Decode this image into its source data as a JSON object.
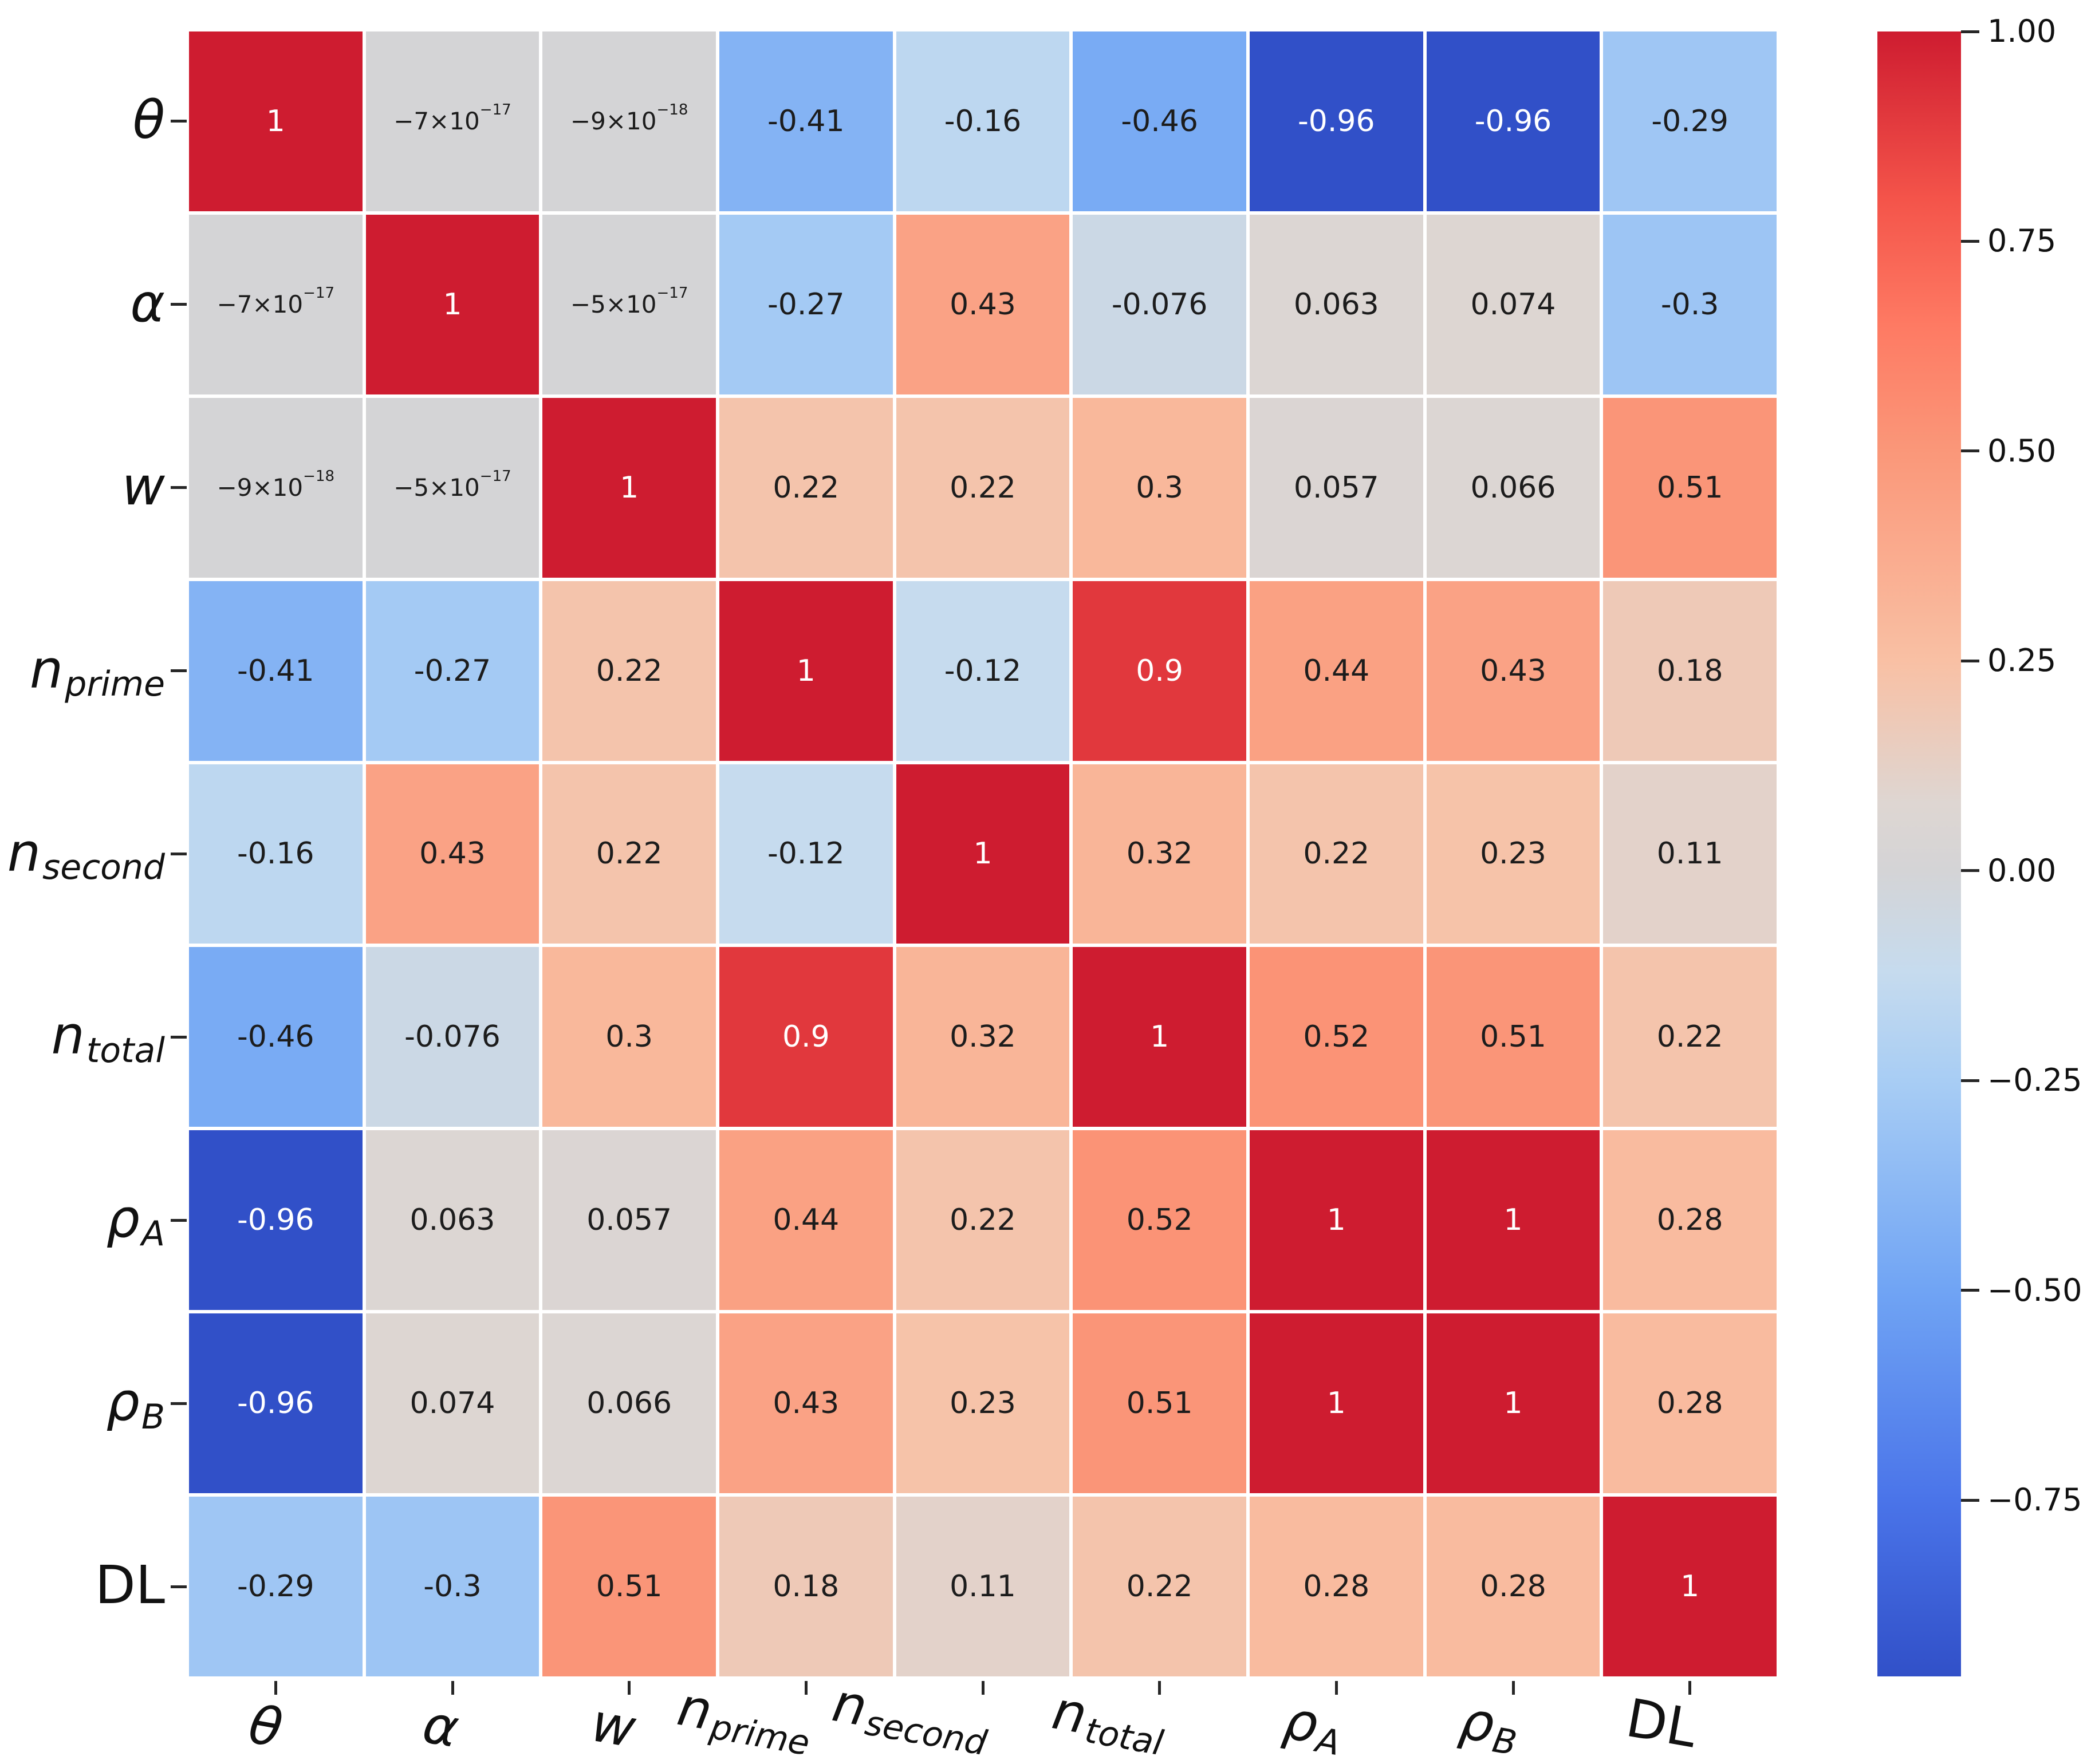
{
  "chart_data": {
    "type": "heatmap",
    "title": "",
    "subtitle": "",
    "legend_position": "right-colorbar",
    "grid": false,
    "variables": [
      {
        "base": "θ",
        "sub": "",
        "italic": true
      },
      {
        "base": "α",
        "sub": "",
        "italic": true
      },
      {
        "base": "w",
        "sub": "",
        "italic": true
      },
      {
        "base": "n",
        "sub": "prime",
        "italic": true
      },
      {
        "base": "n",
        "sub": "second",
        "italic": true
      },
      {
        "base": "n",
        "sub": "total",
        "italic": true
      },
      {
        "base": "ρ",
        "sub": "A",
        "italic": true
      },
      {
        "base": "ρ",
        "sub": "B",
        "italic": true
      },
      {
        "base": "DL",
        "sub": "",
        "italic": false
      }
    ],
    "matrix": [
      [
        1,
        -7e-17,
        -9e-18,
        -0.41,
        -0.16,
        -0.46,
        -0.96,
        -0.96,
        -0.29
      ],
      [
        -7e-17,
        1,
        -5e-17,
        -0.27,
        0.43,
        -0.076,
        0.063,
        0.074,
        -0.3
      ],
      [
        -9e-18,
        -5e-17,
        1,
        0.22,
        0.22,
        0.3,
        0.057,
        0.066,
        0.51
      ],
      [
        -0.41,
        -0.27,
        0.22,
        1,
        -0.12,
        0.9,
        0.44,
        0.43,
        0.18
      ],
      [
        -0.16,
        0.43,
        0.22,
        -0.12,
        1,
        0.32,
        0.22,
        0.23,
        0.11
      ],
      [
        -0.46,
        -0.076,
        0.3,
        0.9,
        0.32,
        1,
        0.52,
        0.51,
        0.22
      ],
      [
        -0.96,
        0.063,
        0.057,
        0.44,
        0.22,
        0.52,
        1,
        1,
        0.28
      ],
      [
        -0.96,
        0.074,
        0.066,
        0.43,
        0.23,
        0.51,
        1,
        1,
        0.28
      ],
      [
        -0.29,
        -0.3,
        0.51,
        0.18,
        0.11,
        0.22,
        0.28,
        0.28,
        1
      ]
    ],
    "cell_labels": [
      [
        "1",
        "−7×10^−17",
        "−9×10^−18",
        "-0.41",
        "-0.16",
        "-0.46",
        "-0.96",
        "-0.96",
        "-0.29"
      ],
      [
        "−7×10^−17",
        "1",
        "−5×10^−17",
        "-0.27",
        "0.43",
        "-0.076",
        "0.063",
        "0.074",
        "-0.3"
      ],
      [
        "−9×10^−18",
        "−5×10^−17",
        "1",
        "0.22",
        "0.22",
        "0.3",
        "0.057",
        "0.066",
        "0.51"
      ],
      [
        "-0.41",
        "-0.27",
        "0.22",
        "1",
        "-0.12",
        "0.9",
        "0.44",
        "0.43",
        "0.18"
      ],
      [
        "-0.16",
        "0.43",
        "0.22",
        "-0.12",
        "1",
        "0.32",
        "0.22",
        "0.23",
        "0.11"
      ],
      [
        "-0.46",
        "-0.076",
        "0.3",
        "0.9",
        "0.32",
        "1",
        "0.52",
        "0.51",
        "0.22"
      ],
      [
        "-0.96",
        "0.063",
        "0.057",
        "0.44",
        "0.22",
        "0.52",
        "1",
        "1",
        "0.28"
      ],
      [
        "-0.96",
        "0.074",
        "0.066",
        "0.43",
        "0.23",
        "0.51",
        "1",
        "1",
        "0.28"
      ],
      [
        "-0.29",
        "-0.3",
        "0.51",
        "0.18",
        "0.11",
        "0.22",
        "0.28",
        "0.28",
        "1"
      ]
    ],
    "vmin": -0.96,
    "vmax": 1.0,
    "colorbar": {
      "tick_labels": [
        "1.00",
        "0.75",
        "0.50",
        "0.25",
        "0.00",
        "−0.25",
        "−0.50",
        "−0.75"
      ],
      "tick_values": [
        1.0,
        0.75,
        0.5,
        0.25,
        0.0,
        -0.25,
        -0.5,
        -0.75
      ]
    },
    "colormap_anchors": [
      [
        -0.96,
        "#3150c8"
      ],
      [
        -0.75,
        "#4a74e9"
      ],
      [
        -0.5,
        "#70a4f4"
      ],
      [
        -0.25,
        "#a8cdf4"
      ],
      [
        -0.12,
        "#c6dbee"
      ],
      [
        0.0,
        "#d4d4d6"
      ],
      [
        0.08,
        "#ded6d2"
      ],
      [
        0.25,
        "#f9c0a4"
      ],
      [
        0.5,
        "#fa9779"
      ],
      [
        0.65,
        "#fe7a63"
      ],
      [
        0.8,
        "#f4544a"
      ],
      [
        1.0,
        "#ce1c30"
      ]
    ],
    "text_colors": {
      "light": "#ffffff",
      "dark": "#1c1c1c"
    },
    "white_text_threshold": 0.85,
    "tick_color": "#262626"
  }
}
